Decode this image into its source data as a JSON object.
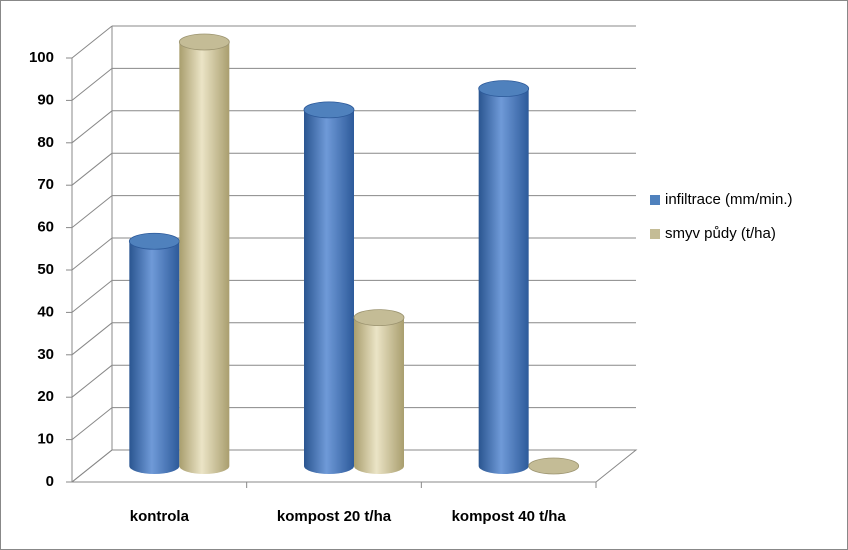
{
  "chart_data": {
    "type": "bar3d",
    "categories": [
      "kontrola",
      "kompost 20 t/ha",
      "kompost 40 t/ha"
    ],
    "series": [
      {
        "name": "infiltrace (mm/min.)",
        "color": "#4f81bd",
        "values": [
          53,
          84,
          89
        ]
      },
      {
        "name": "smyv půdy (t/ha)",
        "color": "#c4bc96",
        "values": [
          100,
          35,
          0
        ]
      }
    ],
    "ylim": [
      0,
      100
    ],
    "yticks": [
      0,
      10,
      20,
      30,
      40,
      50,
      60,
      70,
      80,
      90,
      100
    ],
    "grid": true,
    "legend": "right"
  }
}
